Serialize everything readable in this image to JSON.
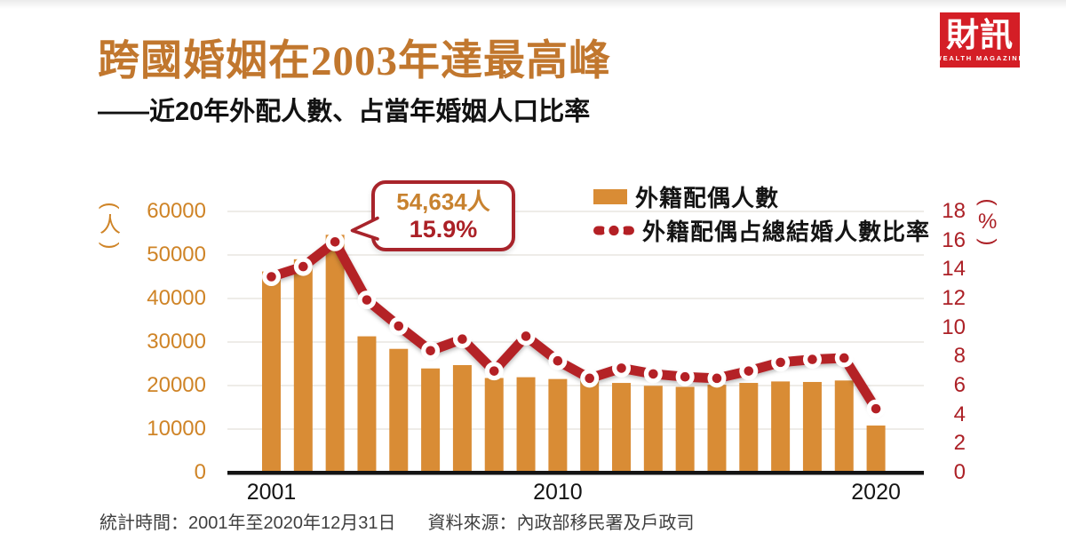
{
  "header": {
    "title": "跨國婚姻在2003年達最高峰",
    "subtitle": "——近20年外配人數、占當年婚姻人口比率",
    "title_color": "#c1772e"
  },
  "logo": {
    "name": "財訊",
    "tagline": "WEALTH MAGAZINE",
    "bg_color": "#d41e26",
    "text_color": "#ffffff"
  },
  "chart_data": {
    "type": "bar",
    "subtype": "bar+line combo, dual axis",
    "x": [
      2001,
      2002,
      2003,
      2004,
      2005,
      2006,
      2007,
      2008,
      2009,
      2010,
      2011,
      2012,
      2013,
      2014,
      2015,
      2016,
      2017,
      2018,
      2019,
      2020
    ],
    "series": [
      {
        "name": "外籍配偶人數",
        "type": "bar",
        "axis": "left",
        "unit": "人",
        "color": "#d98c35",
        "values": [
          46202,
          49013,
          54634,
          31310,
          28427,
          23930,
          24700,
          21729,
          21914,
          21501,
          21516,
          20600,
          19942,
          19701,
          20176,
          20604,
          20941,
          20821,
          21160,
          10813
        ]
      },
      {
        "name": "外籍配偶占總結婚人數比率",
        "type": "line",
        "axis": "right",
        "unit": "%",
        "color": "#b42025",
        "marker": "white-ring-red-dot",
        "values": [
          13.5,
          14.2,
          15.9,
          11.9,
          10.1,
          8.4,
          9.2,
          7.0,
          9.4,
          7.7,
          6.5,
          7.2,
          6.8,
          6.6,
          6.5,
          7.0,
          7.6,
          7.8,
          7.9,
          4.4
        ]
      }
    ],
    "left_axis": {
      "unit": "(人)",
      "max": 60000,
      "ticks": [
        60000,
        50000,
        40000,
        30000,
        20000,
        10000,
        0
      ],
      "color": "#cf8427"
    },
    "right_axis": {
      "unit": "(%)",
      "max": 18,
      "ticks": [
        18,
        16,
        14,
        12,
        10,
        8,
        6,
        4,
        2,
        0
      ],
      "color": "#ac2026"
    },
    "x_ticks": [
      {
        "label": "2001",
        "index": 0
      },
      {
        "label": "2010",
        "index": 9
      },
      {
        "label": "2020",
        "index": 19
      }
    ],
    "grid": true,
    "legend_position": "top-right-inside",
    "annotation": {
      "target_year": 2003,
      "value_label": "54,634人",
      "pct_label": "15.9%",
      "value_color": "#c8822f",
      "pct_color": "#ab2026",
      "border_color": "#a8242b"
    }
  },
  "footer": {
    "stat_time": "統計時間：2001年至2020年12月31日",
    "source": "資料來源：內政部移民署及戶政司"
  }
}
